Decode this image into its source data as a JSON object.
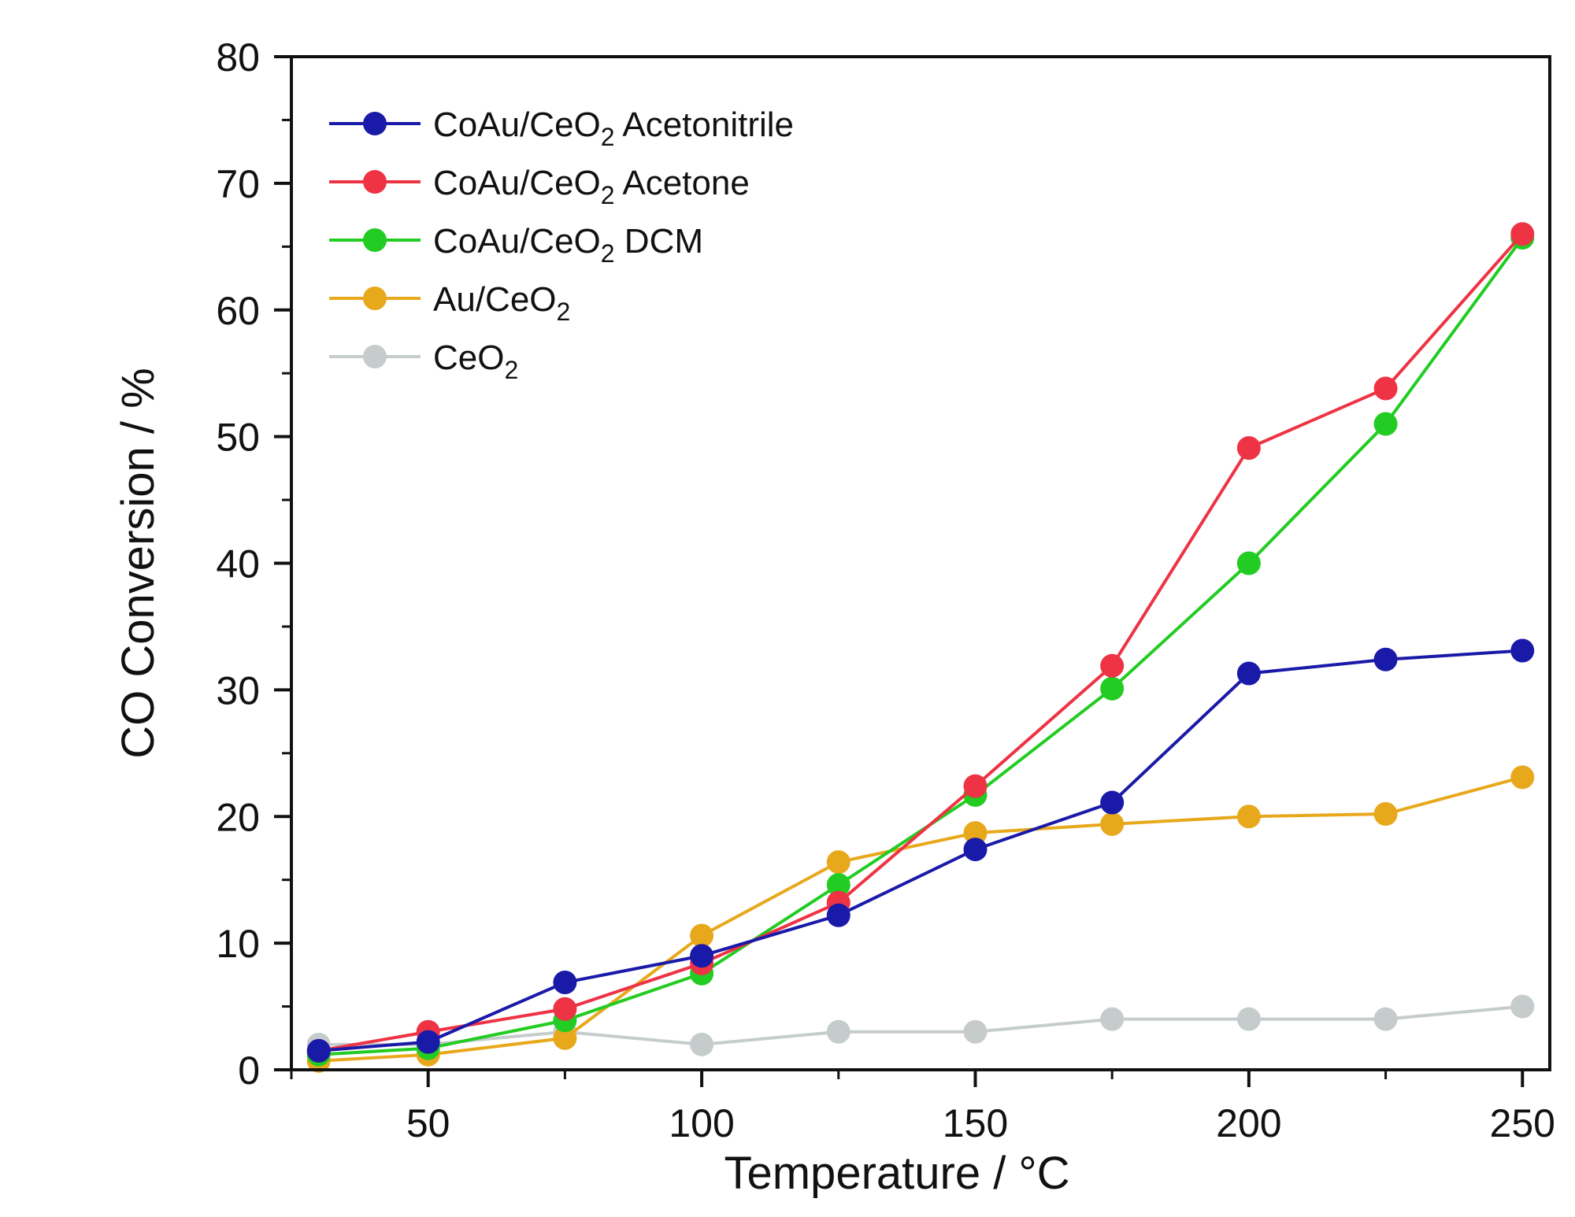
{
  "chart_data": {
    "type": "line",
    "title": "",
    "xlabel": "Temperature / °C",
    "ylabel": "CO Conversion / %",
    "xlim": [
      25,
      255
    ],
    "ylim": [
      0,
      80
    ],
    "x_major_ticks": [
      50,
      100,
      150,
      200,
      250
    ],
    "x_minor_ticks": [
      25,
      75,
      125,
      175,
      225
    ],
    "y_major_ticks": [
      0,
      10,
      20,
      30,
      40,
      50,
      60,
      70,
      80
    ],
    "y_minor_ticks": [
      5,
      15,
      25,
      35,
      45,
      55,
      65,
      75
    ],
    "x": [
      30,
      50,
      75,
      100,
      125,
      150,
      175,
      200,
      225,
      250
    ],
    "legend_position": "top-left",
    "series": [
      {
        "name": "CoAu/CeO2 Acetonitrile",
        "label_parts": [
          "CoAu/CeO",
          "2",
          " Acetonitrile"
        ],
        "color": "#1a1aa8",
        "values": [
          1.5,
          2.2,
          6.9,
          9.0,
          12.2,
          17.4,
          21.1,
          31.3,
          32.4,
          33.1
        ]
      },
      {
        "name": "CoAu/CeO2 Acetone",
        "label_parts": [
          "CoAu/CeO",
          "2",
          " Acetone"
        ],
        "color": "#ee3344",
        "values": [
          1.5,
          3.0,
          4.8,
          8.4,
          13.2,
          22.4,
          31.9,
          49.1,
          53.8,
          66.0
        ]
      },
      {
        "name": "CoAu/CeO2 DCM",
        "label_parts": [
          "CoAu/CeO",
          "2",
          " DCM"
        ],
        "color": "#22cc22",
        "values": [
          1.2,
          1.7,
          3.9,
          7.6,
          14.6,
          21.7,
          30.1,
          40.0,
          51.0,
          65.7
        ]
      },
      {
        "name": "Au/CeO2",
        "label_parts": [
          "Au/CeO",
          "2",
          ""
        ],
        "color": "#e8a81c",
        "values": [
          0.7,
          1.2,
          2.5,
          10.6,
          16.4,
          18.7,
          19.4,
          20.0,
          20.2,
          23.1
        ]
      },
      {
        "name": "CeO2",
        "label_parts": [
          "CeO",
          "2",
          ""
        ],
        "color": "#c6cccc",
        "values": [
          2.0,
          2.0,
          3.0,
          2.0,
          3.0,
          3.0,
          4.0,
          4.0,
          4.0,
          5.0
        ]
      }
    ]
  }
}
